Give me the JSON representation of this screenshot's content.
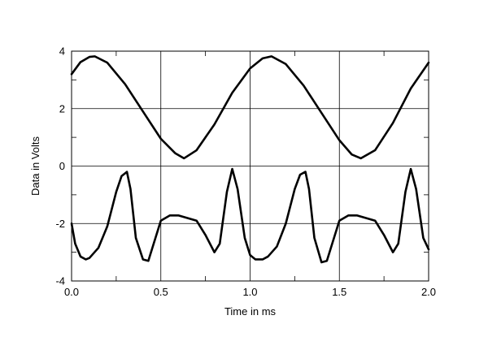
{
  "chart_data": {
    "type": "line",
    "title": "",
    "xlabel": "Time in ms",
    "ylabel": "Data in Volts",
    "xlim": [
      0,
      2
    ],
    "ylim": [
      -4,
      4
    ],
    "x_ticks": [
      0.0,
      0.5,
      1.0,
      1.5,
      2.0
    ],
    "x_tick_labels": [
      "0.0",
      "0.5",
      "1.0",
      "1.5",
      "2.0"
    ],
    "y_ticks": [
      -4,
      -2,
      0,
      2,
      4
    ],
    "y_tick_labels": [
      "-4",
      "-2",
      "0",
      "2",
      "4"
    ],
    "grid": true,
    "legend": "none",
    "colors": {
      "line": "#000000",
      "grid": "#000000",
      "background": "#ffffff"
    },
    "series": [
      {
        "x": [
          0.0,
          0.05,
          0.1,
          0.13,
          0.2,
          0.3,
          0.4,
          0.5,
          0.58,
          0.63,
          0.7,
          0.8,
          0.9,
          1.0,
          1.07,
          1.12,
          1.2,
          1.3,
          1.4,
          1.5,
          1.57,
          1.62,
          1.7,
          1.8,
          1.9,
          2.0
        ],
        "y": [
          3.2,
          3.62,
          3.8,
          3.82,
          3.6,
          2.85,
          1.9,
          0.95,
          0.45,
          0.27,
          0.55,
          1.45,
          2.55,
          3.4,
          3.75,
          3.82,
          3.55,
          2.8,
          1.85,
          0.9,
          0.4,
          0.27,
          0.55,
          1.5,
          2.7,
          3.6
        ]
      },
      {
        "x": [
          0.0,
          0.02,
          0.05,
          0.08,
          0.1,
          0.15,
          0.2,
          0.25,
          0.28,
          0.31,
          0.33,
          0.36,
          0.4,
          0.43,
          0.46,
          0.5,
          0.55,
          0.6,
          0.7,
          0.75,
          0.8,
          0.83,
          0.87,
          0.9,
          0.93,
          0.97,
          1.0,
          1.03,
          1.07,
          1.1,
          1.15,
          1.2,
          1.25,
          1.28,
          1.31,
          1.33,
          1.36,
          1.4,
          1.43,
          1.46,
          1.5,
          1.55,
          1.6,
          1.7,
          1.75,
          1.8,
          1.83,
          1.87,
          1.9,
          1.93,
          1.97,
          2.0
        ],
        "y": [
          -2.0,
          -2.7,
          -3.15,
          -3.25,
          -3.2,
          -2.85,
          -2.1,
          -0.9,
          -0.35,
          -0.2,
          -0.8,
          -2.5,
          -3.25,
          -3.3,
          -2.7,
          -1.9,
          -1.72,
          -1.72,
          -1.9,
          -2.4,
          -3.0,
          -2.7,
          -0.9,
          -0.1,
          -0.8,
          -2.5,
          -3.1,
          -3.25,
          -3.25,
          -3.15,
          -2.8,
          -2.0,
          -0.8,
          -0.3,
          -0.2,
          -0.8,
          -2.5,
          -3.35,
          -3.3,
          -2.7,
          -1.9,
          -1.72,
          -1.72,
          -1.9,
          -2.4,
          -3.0,
          -2.7,
          -0.9,
          -0.1,
          -0.8,
          -2.5,
          -2.9
        ]
      }
    ]
  }
}
